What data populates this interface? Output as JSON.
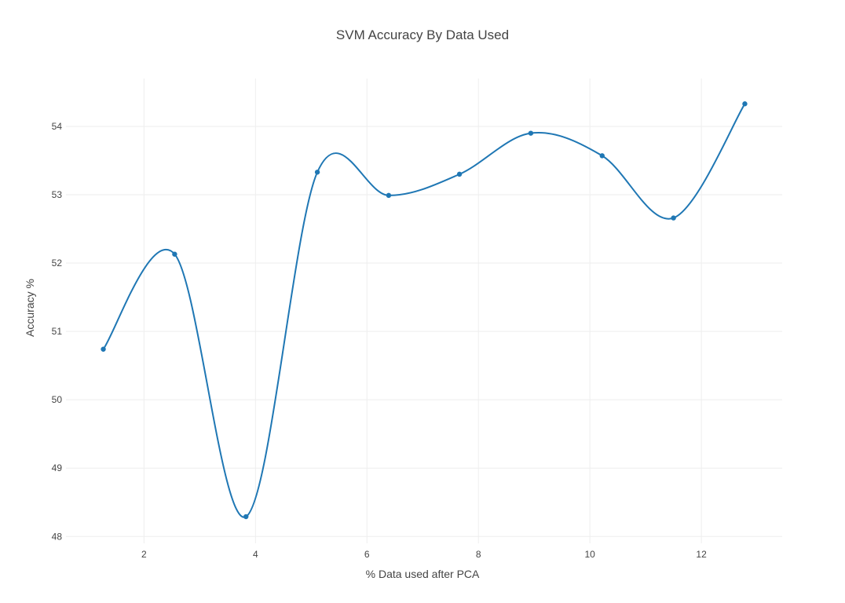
{
  "chart_data": {
    "type": "line",
    "title": "SVM Accuracy By Data Used",
    "xlabel": "% Data used after PCA",
    "ylabel": "Accuracy %",
    "xlim": [
      0.6,
      13.45
    ],
    "ylim": [
      47.9,
      54.7
    ],
    "x_ticks": [
      2,
      4,
      6,
      8,
      10,
      12
    ],
    "y_ticks": [
      48,
      49,
      50,
      51,
      52,
      53,
      54
    ],
    "grid": true,
    "legend": "none",
    "line_shape": "spline",
    "series": [
      {
        "color": "#1f77b4",
        "x": [
          1.27,
          2.55,
          3.83,
          5.11,
          6.39,
          7.66,
          8.94,
          10.22,
          11.5,
          12.78
        ],
        "y": [
          50.74,
          52.13,
          48.29,
          53.33,
          52.99,
          53.3,
          53.9,
          53.57,
          52.66,
          54.33
        ]
      }
    ]
  }
}
